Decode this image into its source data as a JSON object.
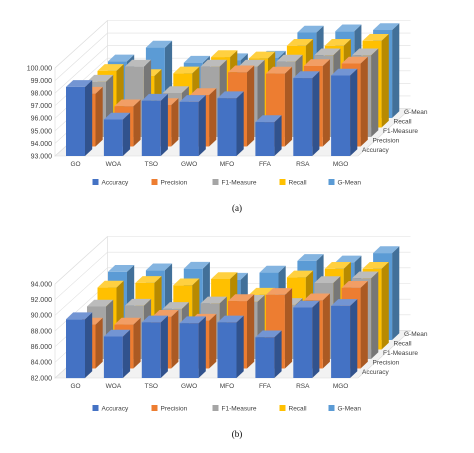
{
  "colors": {
    "Accuracy": "#4472C4",
    "Precision": "#ED7D31",
    "F1-Measure": "#A5A5A5",
    "Recall": "#FFC000",
    "G-Mean": "#5B9BD5",
    "frame": "#d9d9d9",
    "grid": "#e0e0e0"
  },
  "chart_data": [
    {
      "type": "bar",
      "projection": "3d-clustered",
      "caption": "(a)",
      "categories": [
        "GO",
        "WOA",
        "TSO",
        "GWO",
        "MFO",
        "FFA",
        "RSA",
        "MGO"
      ],
      "depth_labels": [
        "Accuracy",
        "Precision",
        "F1-Measure",
        "Recall",
        "G-Mean"
      ],
      "ylim": [
        93.0,
        100.0
      ],
      "y_ticks": [
        "93.000",
        "94.000",
        "95.000",
        "96.000",
        "97.000",
        "98.000",
        "99.000",
        "100.000"
      ],
      "grid": true,
      "legend_position": "bottom",
      "series": [
        {
          "name": "Accuracy",
          "values": [
            98.5,
            95.9,
            97.4,
            97.3,
            97.6,
            95.7,
            99.2,
            99.4
          ]
        },
        {
          "name": "Precision",
          "values": [
            97.2,
            96.2,
            96.3,
            97.1,
            98.9,
            98.8,
            99.4,
            99.6
          ]
        },
        {
          "name": "F1-Measure",
          "values": [
            97.4,
            98.6,
            96.5,
            98.6,
            98.6,
            99.0,
            99.5,
            99.5
          ]
        },
        {
          "name": "Recall",
          "values": [
            97.5,
            97.1,
            97.3,
            98.6,
            98.5,
            99.5,
            99.5,
            99.9
          ]
        },
        {
          "name": "G-Mean",
          "values": [
            97.5,
            98.6,
            97.4,
            97.6,
            97.8,
            99.8,
            99.9,
            100.0
          ]
        }
      ]
    },
    {
      "type": "bar",
      "projection": "3d-clustered",
      "caption": "(b)",
      "categories": [
        "GO",
        "WOA",
        "TSO",
        "GWO",
        "MFO",
        "FFA",
        "RSA",
        "MGO"
      ],
      "depth_labels": [
        "Accuracy",
        "Precision",
        "F1-Measure",
        "Recall",
        "G-Mean"
      ],
      "ylim": [
        82.0,
        94.0
      ],
      "y_ticks": [
        "82.000",
        "84.000",
        "86.000",
        "88.000",
        "90.000",
        "92.000",
        "94.000"
      ],
      "grid": true,
      "legend_position": "bottom",
      "series": [
        {
          "name": "Accuracy",
          "values": [
            89.5,
            87.3,
            89.1,
            89.0,
            89.1,
            87.2,
            91.0,
            91.2
          ]
        },
        {
          "name": "Precision",
          "values": [
            87.6,
            87.6,
            88.6,
            88.1,
            90.6,
            91.4,
            90.7,
            92.3
          ]
        },
        {
          "name": "F1-Measure",
          "values": [
            88.7,
            88.8,
            88.4,
            89.1,
            89.3,
            88.9,
            91.7,
            92.3
          ]
        },
        {
          "name": "Recall",
          "values": [
            89.9,
            90.5,
            90.2,
            91.0,
            89.0,
            91.2,
            92.3,
            92.3
          ]
        },
        {
          "name": "G-Mean",
          "values": [
            90.7,
            90.9,
            91.1,
            89.7,
            90.6,
            92.1,
            91.9,
            93.1
          ]
        }
      ]
    }
  ]
}
